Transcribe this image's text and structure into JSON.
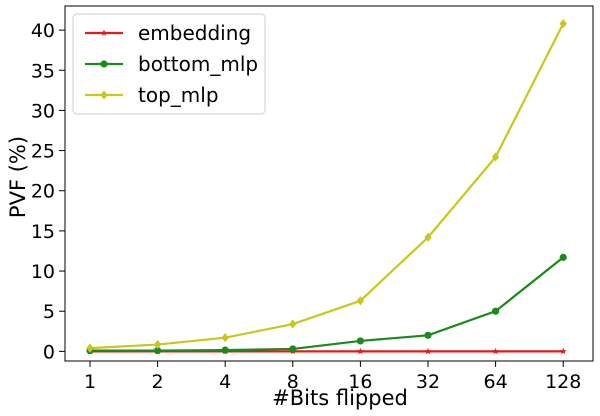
{
  "chart_data": {
    "type": "line",
    "title": "",
    "xlabel": "#Bits flipped",
    "ylabel": "PVF (%)",
    "categories": [
      "1",
      "2",
      "4",
      "8",
      "16",
      "32",
      "64",
      "128"
    ],
    "ylim": [
      -1.2,
      43
    ],
    "yticks": [
      0,
      5,
      10,
      15,
      20,
      25,
      30,
      35,
      40
    ],
    "grid": false,
    "legend": "top-left",
    "series": [
      {
        "name": "embedding",
        "color": "#e41a1c",
        "marker": "star",
        "values": [
          0.0,
          0.0,
          0.0,
          0.0,
          0.0,
          0.0,
          0.0,
          0.0
        ]
      },
      {
        "name": "bottom_mlp",
        "color": "#1a8a1a",
        "marker": "circle",
        "values": [
          0.1,
          0.1,
          0.15,
          0.3,
          1.3,
          2.0,
          5.0,
          11.7
        ]
      },
      {
        "name": "top_mlp",
        "color": "#c8c81a",
        "marker": "diamond",
        "values": [
          0.4,
          0.85,
          1.7,
          3.4,
          6.3,
          14.2,
          24.2,
          40.8
        ]
      }
    ]
  }
}
